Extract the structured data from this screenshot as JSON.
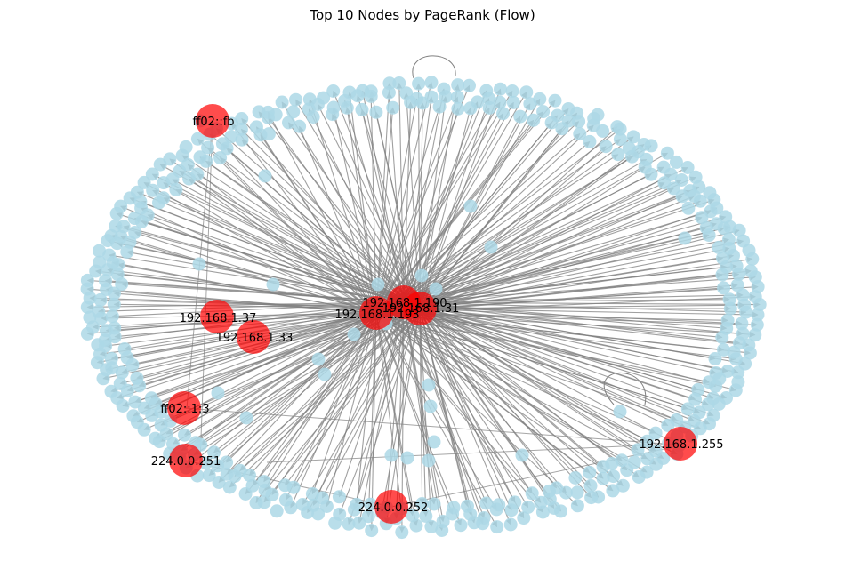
{
  "title": "Top 10 Nodes by PageRank (Flow)",
  "colors": {
    "background": "#ffffff",
    "edge": "#808080",
    "node": "#add8e6",
    "top_node": "#ff0000"
  },
  "graph": {
    "top_nodes": [
      "ff02::fb",
      "192.168.1.190",
      "192.168.1.31",
      "192.168.1.193",
      "192.168.1.37",
      "192.168.1.33",
      "ff02::1:3",
      "224.0.0.251",
      "224.0.0.252",
      "192.168.1.255"
    ]
  }
}
